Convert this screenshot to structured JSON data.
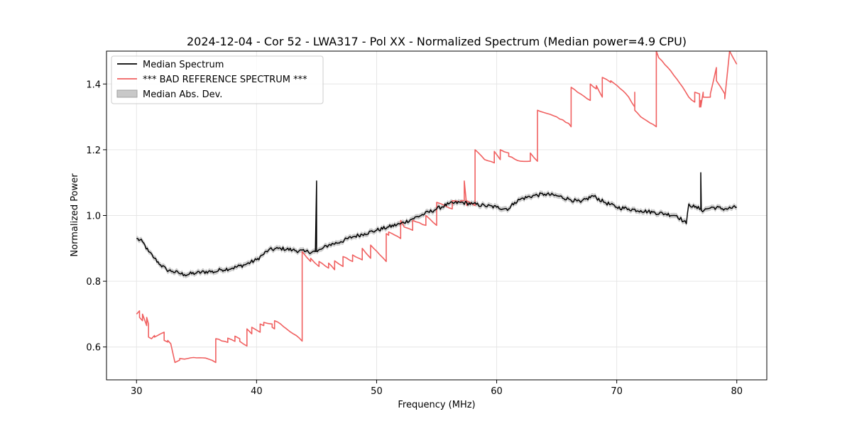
{
  "chart_data": {
    "type": "line",
    "title": "2024-12-04 - Cor 52 - LWA317 - Pol XX - Normalized Spectrum (Median power=4.9 CPU)",
    "xlabel": "Frequency (MHz)",
    "ylabel": "Normalized Power",
    "xlim": [
      27.5,
      82.5
    ],
    "ylim": [
      0.5,
      1.5
    ],
    "xticks": [
      30,
      40,
      50,
      60,
      70,
      80
    ],
    "xtick_labels": [
      "30",
      "40",
      "50",
      "60",
      "70",
      "80"
    ],
    "yticks": [
      0.6,
      0.8,
      1.0,
      1.2,
      1.4
    ],
    "ytick_labels": [
      "0.6",
      "0.8",
      "1.0",
      "1.2",
      "1.4"
    ],
    "grid": true,
    "legend_position": "top-left",
    "legend": [
      {
        "label": "Median Spectrum",
        "kind": "line",
        "color": "#000000"
      },
      {
        "label": "*** BAD REFERENCE SPECTRUM ***",
        "kind": "line",
        "color": "#f06060"
      },
      {
        "label": "Median Abs. Dev.",
        "kind": "patch",
        "color": "#c8c8c8"
      }
    ],
    "series": [
      {
        "name": "Median Spectrum",
        "color": "#000000",
        "x": [
          30,
          30.5,
          31,
          31.5,
          32,
          32.5,
          33,
          33.5,
          34,
          35,
          36,
          36.5,
          37,
          38,
          39,
          40,
          40.5,
          41,
          42,
          43,
          44,
          44.9,
          45,
          45,
          45.05,
          45.5,
          46,
          47,
          48,
          49,
          50,
          51,
          52,
          53,
          54,
          55,
          56,
          57,
          58,
          59,
          60,
          61,
          61.5,
          62,
          63,
          64,
          65,
          66,
          67,
          68,
          69,
          70,
          71,
          72,
          73,
          74,
          75,
          75.8,
          76,
          76.5,
          77,
          77,
          77.05,
          77.5,
          78,
          79,
          80
        ],
        "y": [
          0.93,
          0.92,
          0.89,
          0.87,
          0.85,
          0.835,
          0.83,
          0.825,
          0.82,
          0.825,
          0.83,
          0.828,
          0.835,
          0.84,
          0.85,
          0.865,
          0.88,
          0.895,
          0.9,
          0.895,
          0.89,
          0.89,
          1.105,
          0.89,
          0.89,
          0.9,
          0.91,
          0.92,
          0.935,
          0.945,
          0.955,
          0.965,
          0.975,
          0.99,
          1.005,
          1.02,
          1.035,
          1.04,
          1.035,
          1.03,
          1.025,
          1.02,
          1.04,
          1.05,
          1.06,
          1.065,
          1.06,
          1.05,
          1.04,
          1.06,
          1.04,
          1.025,
          1.02,
          1.015,
          1.01,
          1.005,
          1.0,
          0.975,
          1.035,
          1.025,
          1.02,
          1.13,
          1.015,
          1.02,
          1.025,
          1.02,
          1.025
        ]
      },
      {
        "name": "*** BAD REFERENCE SPECTRUM ***",
        "color": "#f06060",
        "x": [
          30,
          30.25,
          30.25,
          30.5,
          30.5,
          30.85,
          30.85,
          31.0,
          31.0,
          31.25,
          31.5,
          31.5,
          32.0,
          32.3,
          32.3,
          32.6,
          32.6,
          32.85,
          33.2,
          33.6,
          33.6,
          34.0,
          34.5,
          35.0,
          35.5,
          36.0,
          36.6,
          36.6,
          37.6,
          37.6,
          38.2,
          38.2,
          38.6,
          38.6,
          39.2,
          39.2,
          39.6,
          39.6,
          40.3,
          40.3,
          40.6,
          40.6,
          41.3,
          41.3,
          41.5,
          41.5,
          42.0,
          42.5,
          43.3,
          43.8,
          43.8,
          44.5,
          44.5,
          45.2,
          45.2,
          46.0,
          46.0,
          46.5,
          46.5,
          47.2,
          47.2,
          48.0,
          48.0,
          48.8,
          48.8,
          49.5,
          49.5,
          50.8,
          50.8,
          51.0,
          51.0,
          52.0,
          52.0,
          52.3,
          52.3,
          53.0,
          53.0,
          54.1,
          54.1,
          55.0,
          55.0,
          55.4,
          55.4,
          56.3,
          56.3,
          57.0,
          57.0,
          57.3,
          57.3,
          57.5,
          57.5,
          58.2,
          58.2,
          59.0,
          59.8,
          59.8,
          60.3,
          60.3,
          61.0,
          61.0,
          62.0,
          62.8,
          62.8,
          63.4,
          63.4,
          65.0,
          66.0,
          66.2,
          66.2,
          67.8,
          67.8,
          68.3,
          68.3,
          68.8,
          68.8,
          69.5,
          69.5,
          70.5,
          71.0,
          71.5,
          71.5,
          71.5,
          72.0,
          73.3,
          73.3,
          73.5,
          74.5,
          75.5,
          76.0,
          76.5,
          76.5,
          76.9,
          76.9,
          77.0,
          77.0,
          77.2,
          77.2,
          77.8,
          77.8,
          78.3,
          78.3,
          79.0,
          79.0,
          79.4,
          79.4,
          80.0
        ],
        "y": [
          0.7,
          0.71,
          0.69,
          0.68,
          0.7,
          0.665,
          0.69,
          0.67,
          0.63,
          0.625,
          0.635,
          0.63,
          0.64,
          0.645,
          0.62,
          0.615,
          0.62,
          0.61,
          0.553,
          0.56,
          0.565,
          0.563,
          0.567,
          0.567,
          0.567,
          0.563,
          0.553,
          0.625,
          0.614,
          0.627,
          0.617,
          0.633,
          0.625,
          0.617,
          0.603,
          0.655,
          0.64,
          0.66,
          0.645,
          0.67,
          0.665,
          0.675,
          0.67,
          0.66,
          0.655,
          0.68,
          0.67,
          0.655,
          0.635,
          0.618,
          0.89,
          0.86,
          0.87,
          0.845,
          0.86,
          0.84,
          0.855,
          0.835,
          0.862,
          0.845,
          0.875,
          0.86,
          0.88,
          0.865,
          0.9,
          0.87,
          0.91,
          0.86,
          0.945,
          0.94,
          0.95,
          0.93,
          0.985,
          0.965,
          0.965,
          0.955,
          0.985,
          0.97,
          1.0,
          0.97,
          1.04,
          1.035,
          1.035,
          1.02,
          1.045,
          1.04,
          1.045,
          1.045,
          1.105,
          1.03,
          1.045,
          1.03,
          1.2,
          1.17,
          1.16,
          1.195,
          1.17,
          1.2,
          1.19,
          1.18,
          1.165,
          1.165,
          1.19,
          1.165,
          1.32,
          1.3,
          1.28,
          1.27,
          1.39,
          1.35,
          1.4,
          1.385,
          1.395,
          1.36,
          1.42,
          1.405,
          1.41,
          1.38,
          1.36,
          1.33,
          1.375,
          1.32,
          1.3,
          1.27,
          1.5,
          1.48,
          1.44,
          1.39,
          1.36,
          1.345,
          1.375,
          1.37,
          1.33,
          1.35,
          1.33,
          1.375,
          1.36,
          1.36,
          1.37,
          1.45,
          1.41,
          1.37,
          1.355,
          1.5,
          1.5,
          1.46
        ]
      }
    ]
  }
}
